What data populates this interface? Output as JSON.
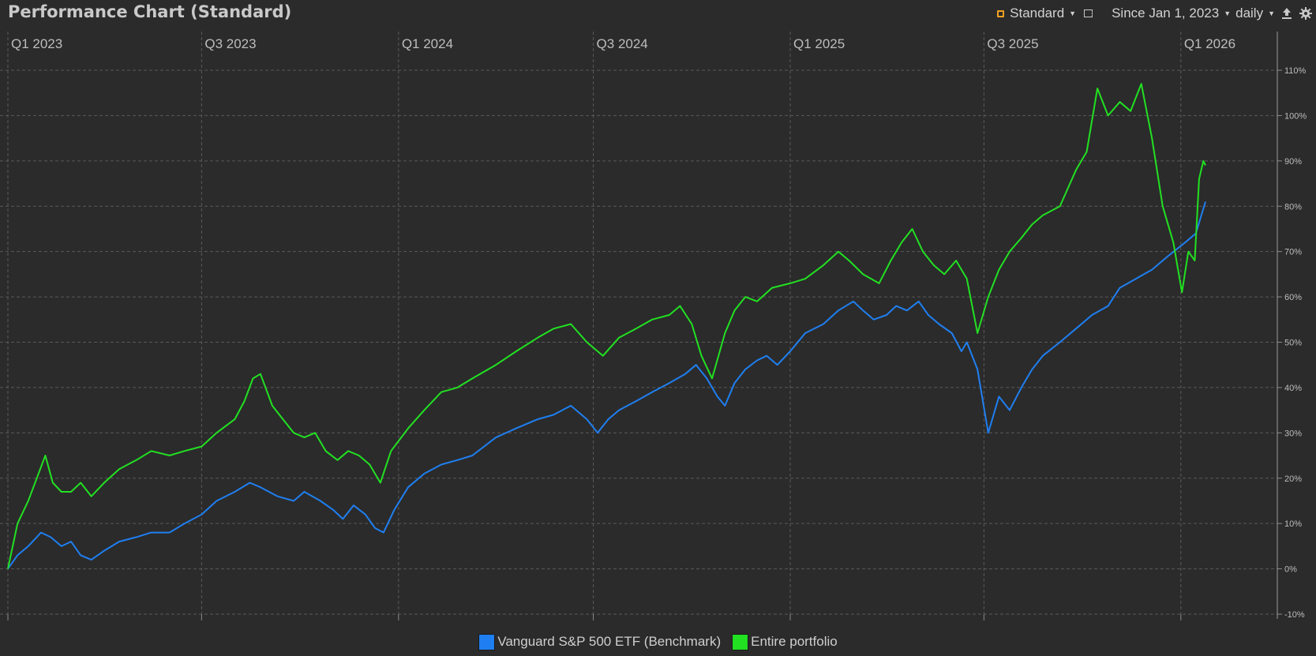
{
  "header": {
    "title": "Performance Chart (Standard)",
    "config_label": "Standard",
    "period_label": "Since Jan 1, 2023",
    "interval_label": "daily"
  },
  "colors": {
    "background": "#2b2b2b",
    "benchmark": "#1f7ff0",
    "portfolio": "#22e022",
    "grid": "#5a5a5a",
    "config_icon": "#f0a020"
  },
  "icons": {
    "config": "square-outline-icon",
    "popout": "popout-window-icon",
    "export": "export-upload-icon",
    "settings": "gear-icon"
  },
  "chart_data": {
    "type": "line",
    "x_ticks": [
      "Q1 2023",
      "Q3 2023",
      "Q1 2024",
      "Q3 2024",
      "Q1 2025",
      "Q3 2025",
      "Q1 2026"
    ],
    "x_range": [
      "2023-01-01",
      "2026-01-24"
    ],
    "y_ticks": [
      "-10%",
      "0%",
      "10%",
      "20%",
      "30%",
      "40%",
      "50%",
      "60%",
      "70%",
      "80%",
      "90%",
      "100%",
      "110%"
    ],
    "ylim": [
      -10,
      110
    ],
    "grid": true,
    "legend_position": "bottom",
    "series": [
      {
        "name": "Vanguard S&P 500 ETF (Benchmark)",
        "color": "#1f7ff0",
        "points": [
          [
            "2023-01-01",
            0
          ],
          [
            "2023-01-10",
            3
          ],
          [
            "2023-01-20",
            5
          ],
          [
            "2023-02-01",
            8
          ],
          [
            "2023-02-10",
            7
          ],
          [
            "2023-02-20",
            5
          ],
          [
            "2023-03-01",
            6
          ],
          [
            "2023-03-10",
            3
          ],
          [
            "2023-03-20",
            2
          ],
          [
            "2023-04-01",
            4
          ],
          [
            "2023-04-15",
            6
          ],
          [
            "2023-05-01",
            7
          ],
          [
            "2023-05-15",
            8
          ],
          [
            "2023-06-01",
            8
          ],
          [
            "2023-06-15",
            10
          ],
          [
            "2023-07-01",
            12
          ],
          [
            "2023-07-15",
            15
          ],
          [
            "2023-08-01",
            17
          ],
          [
            "2023-08-15",
            19
          ],
          [
            "2023-08-25",
            18
          ],
          [
            "2023-09-10",
            16
          ],
          [
            "2023-09-25",
            15
          ],
          [
            "2023-10-05",
            17
          ],
          [
            "2023-10-20",
            15
          ],
          [
            "2023-11-01",
            13
          ],
          [
            "2023-11-10",
            11
          ],
          [
            "2023-11-20",
            14
          ],
          [
            "2023-12-01",
            12
          ],
          [
            "2023-12-10",
            9
          ],
          [
            "2023-12-18",
            8
          ],
          [
            "2023-12-28",
            13
          ],
          [
            "2024-01-10",
            18
          ],
          [
            "2024-01-25",
            21
          ],
          [
            "2024-02-10",
            23
          ],
          [
            "2024-02-25",
            24
          ],
          [
            "2024-03-10",
            25
          ],
          [
            "2024-04-01",
            29
          ],
          [
            "2024-04-20",
            31
          ],
          [
            "2024-05-10",
            33
          ],
          [
            "2024-05-25",
            34
          ],
          [
            "2024-06-10",
            36
          ],
          [
            "2024-06-25",
            33
          ],
          [
            "2024-07-05",
            30
          ],
          [
            "2024-07-15",
            33
          ],
          [
            "2024-07-25",
            35
          ],
          [
            "2024-08-10",
            37
          ],
          [
            "2024-08-25",
            39
          ],
          [
            "2024-09-10",
            41
          ],
          [
            "2024-09-25",
            43
          ],
          [
            "2024-10-05",
            45
          ],
          [
            "2024-10-15",
            42
          ],
          [
            "2024-10-25",
            38
          ],
          [
            "2024-11-01",
            36
          ],
          [
            "2024-11-10",
            41
          ],
          [
            "2024-11-20",
            44
          ],
          [
            "2024-12-01",
            46
          ],
          [
            "2024-12-10",
            47
          ],
          [
            "2024-12-20",
            45
          ],
          [
            "2025-01-01",
            48
          ],
          [
            "2025-01-15",
            52
          ],
          [
            "2025-02-01",
            54
          ],
          [
            "2025-02-15",
            57
          ],
          [
            "2025-03-01",
            59
          ],
          [
            "2025-03-10",
            57
          ],
          [
            "2025-03-20",
            55
          ],
          [
            "2025-04-01",
            56
          ],
          [
            "2025-04-10",
            58
          ],
          [
            "2025-04-20",
            57
          ],
          [
            "2025-05-01",
            59
          ],
          [
            "2025-05-10",
            56
          ],
          [
            "2025-05-20",
            54
          ],
          [
            "2025-06-01",
            52
          ],
          [
            "2025-06-10",
            48
          ],
          [
            "2025-06-15",
            50
          ],
          [
            "2025-06-25",
            44
          ],
          [
            "2025-07-05",
            30
          ],
          [
            "2025-07-15",
            38
          ],
          [
            "2025-07-25",
            35
          ],
          [
            "2025-08-05",
            40
          ],
          [
            "2025-08-15",
            44
          ],
          [
            "2025-08-25",
            47
          ],
          [
            "2025-09-10",
            50
          ],
          [
            "2025-09-25",
            53
          ],
          [
            "2025-10-10",
            56
          ],
          [
            "2025-10-25",
            58
          ],
          [
            "2025-11-05",
            62
          ],
          [
            "2025-11-20",
            64
          ],
          [
            "2025-12-05",
            66
          ],
          [
            "2025-12-20",
            69
          ],
          [
            "2026-01-05",
            72
          ],
          [
            "2026-01-15",
            74
          ],
          [
            "2026-01-24",
            81
          ]
        ]
      },
      {
        "name": "Entire portfolio",
        "color": "#22e022",
        "points": [
          [
            "2023-01-01",
            0
          ],
          [
            "2023-01-10",
            10
          ],
          [
            "2023-01-20",
            15
          ],
          [
            "2023-01-28",
            20
          ],
          [
            "2023-02-05",
            25
          ],
          [
            "2023-02-12",
            19
          ],
          [
            "2023-02-20",
            17
          ],
          [
            "2023-03-01",
            17
          ],
          [
            "2023-03-10",
            19
          ],
          [
            "2023-03-20",
            16
          ],
          [
            "2023-04-01",
            19
          ],
          [
            "2023-04-15",
            22
          ],
          [
            "2023-05-01",
            24
          ],
          [
            "2023-05-15",
            26
          ],
          [
            "2023-06-01",
            25
          ],
          [
            "2023-06-15",
            26
          ],
          [
            "2023-07-01",
            27
          ],
          [
            "2023-07-15",
            30
          ],
          [
            "2023-08-01",
            33
          ],
          [
            "2023-08-10",
            37
          ],
          [
            "2023-08-18",
            42
          ],
          [
            "2023-08-25",
            43
          ],
          [
            "2023-09-05",
            36
          ],
          [
            "2023-09-15",
            33
          ],
          [
            "2023-09-25",
            30
          ],
          [
            "2023-10-05",
            29
          ],
          [
            "2023-10-15",
            30
          ],
          [
            "2023-10-25",
            26
          ],
          [
            "2023-11-05",
            24
          ],
          [
            "2023-11-15",
            26
          ],
          [
            "2023-11-25",
            25
          ],
          [
            "2023-12-05",
            23
          ],
          [
            "2023-12-15",
            19
          ],
          [
            "2023-12-25",
            26
          ],
          [
            "2024-01-10",
            31
          ],
          [
            "2024-01-25",
            35
          ],
          [
            "2024-02-10",
            39
          ],
          [
            "2024-02-25",
            40
          ],
          [
            "2024-03-10",
            42
          ],
          [
            "2024-04-01",
            45
          ],
          [
            "2024-04-20",
            48
          ],
          [
            "2024-05-10",
            51
          ],
          [
            "2024-05-25",
            53
          ],
          [
            "2024-06-10",
            54
          ],
          [
            "2024-06-25",
            50
          ],
          [
            "2024-07-10",
            47
          ],
          [
            "2024-07-25",
            51
          ],
          [
            "2024-08-10",
            53
          ],
          [
            "2024-08-25",
            55
          ],
          [
            "2024-09-10",
            56
          ],
          [
            "2024-09-20",
            58
          ],
          [
            "2024-10-01",
            54
          ],
          [
            "2024-10-10",
            47
          ],
          [
            "2024-10-20",
            42
          ],
          [
            "2024-11-01",
            52
          ],
          [
            "2024-11-10",
            57
          ],
          [
            "2024-11-20",
            60
          ],
          [
            "2024-12-01",
            59
          ],
          [
            "2024-12-15",
            62
          ],
          [
            "2025-01-01",
            63
          ],
          [
            "2025-01-15",
            64
          ],
          [
            "2025-02-01",
            67
          ],
          [
            "2025-02-15",
            70
          ],
          [
            "2025-02-25",
            68
          ],
          [
            "2025-03-10",
            65
          ],
          [
            "2025-03-25",
            63
          ],
          [
            "2025-04-05",
            68
          ],
          [
            "2025-04-15",
            72
          ],
          [
            "2025-04-25",
            75
          ],
          [
            "2025-05-05",
            70
          ],
          [
            "2025-05-15",
            67
          ],
          [
            "2025-05-25",
            65
          ],
          [
            "2025-06-05",
            68
          ],
          [
            "2025-06-15",
            64
          ],
          [
            "2025-06-25",
            52
          ],
          [
            "2025-07-05",
            60
          ],
          [
            "2025-07-15",
            66
          ],
          [
            "2025-07-25",
            70
          ],
          [
            "2025-08-05",
            73
          ],
          [
            "2025-08-15",
            76
          ],
          [
            "2025-08-25",
            78
          ],
          [
            "2025-09-10",
            80
          ],
          [
            "2025-09-25",
            88
          ],
          [
            "2025-10-05",
            92
          ],
          [
            "2025-10-15",
            106
          ],
          [
            "2025-10-25",
            100
          ],
          [
            "2025-11-05",
            103
          ],
          [
            "2025-11-15",
            101
          ],
          [
            "2025-11-25",
            107
          ],
          [
            "2025-12-05",
            95
          ],
          [
            "2025-12-15",
            80
          ],
          [
            "2025-12-25",
            72
          ],
          [
            "2026-01-02",
            61
          ],
          [
            "2026-01-08",
            70
          ],
          [
            "2026-01-14",
            68
          ],
          [
            "2026-01-18",
            86
          ],
          [
            "2026-01-22",
            90
          ],
          [
            "2026-01-24",
            89
          ]
        ]
      }
    ]
  }
}
